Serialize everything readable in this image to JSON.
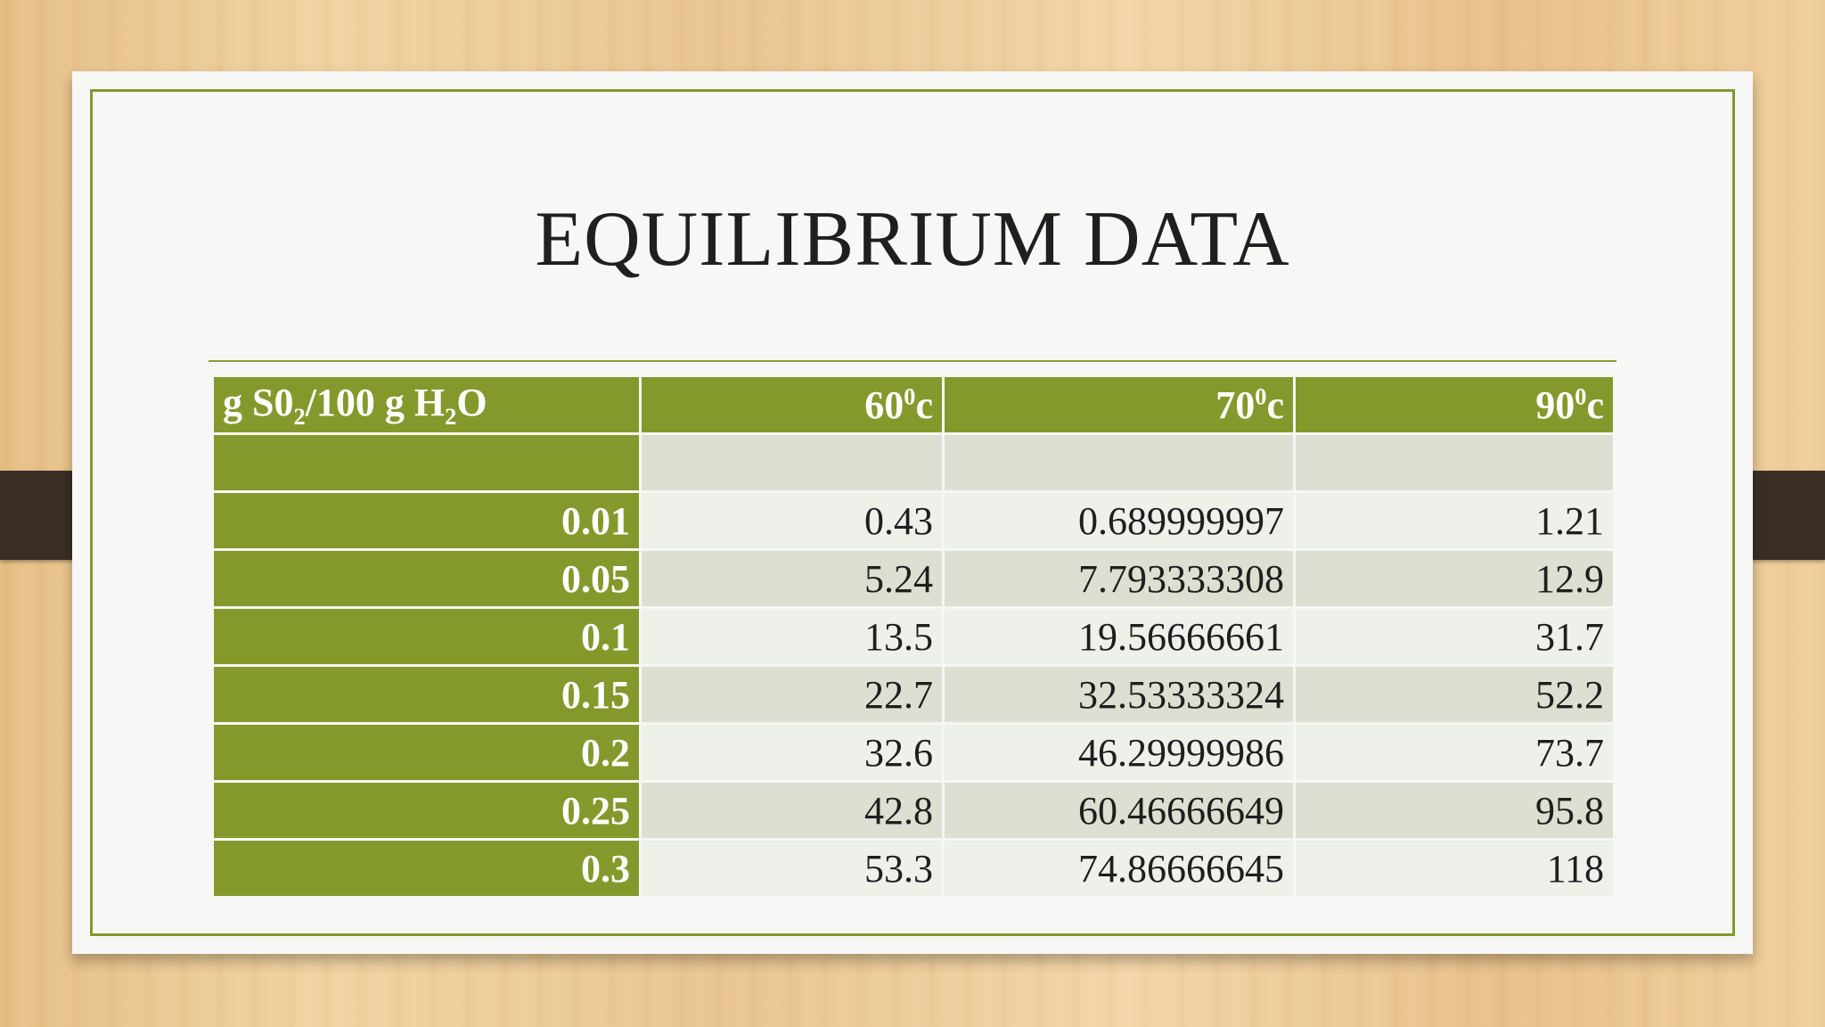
{
  "slide": {
    "title": "EQUILIBRIUM DATA"
  },
  "table": {
    "header": {
      "col0": {
        "part1": "g S0",
        "sub1": "2",
        "part2": "/100 g H",
        "sub2": "2",
        "part3": "O"
      },
      "col1": {
        "base": "60",
        "sup": "0",
        "unit": "c"
      },
      "col2": {
        "base": "70",
        "sup": "0",
        "unit": "c"
      },
      "col3": {
        "base": "90",
        "sup": "0",
        "unit": "c"
      }
    },
    "rows": [
      {
        "x": "",
        "t60": "",
        "t70": "",
        "t90": ""
      },
      {
        "x": "0.01",
        "t60": "0.43",
        "t70": "0.689999997",
        "t90": "1.21"
      },
      {
        "x": "0.05",
        "t60": "5.24",
        "t70": "7.793333308",
        "t90": "12.9"
      },
      {
        "x": "0.1",
        "t60": "13.5",
        "t70": "19.56666661",
        "t90": "31.7"
      },
      {
        "x": "0.15",
        "t60": "22.7",
        "t70": "32.53333324",
        "t90": "52.2"
      },
      {
        "x": "0.2",
        "t60": "32.6",
        "t70": "46.29999986",
        "t90": "73.7"
      },
      {
        "x": "0.25",
        "t60": "42.8",
        "t70": "60.46666649",
        "t90": "95.8"
      },
      {
        "x": "0.3",
        "t60": "53.3",
        "t70": "74.86666645",
        "t90": "118"
      }
    ]
  },
  "colors": {
    "accent_green": "#84992c",
    "row_band_dark": "#dcdfd1",
    "row_band_light": "#eef0ea",
    "clip": "#3a2e25"
  }
}
